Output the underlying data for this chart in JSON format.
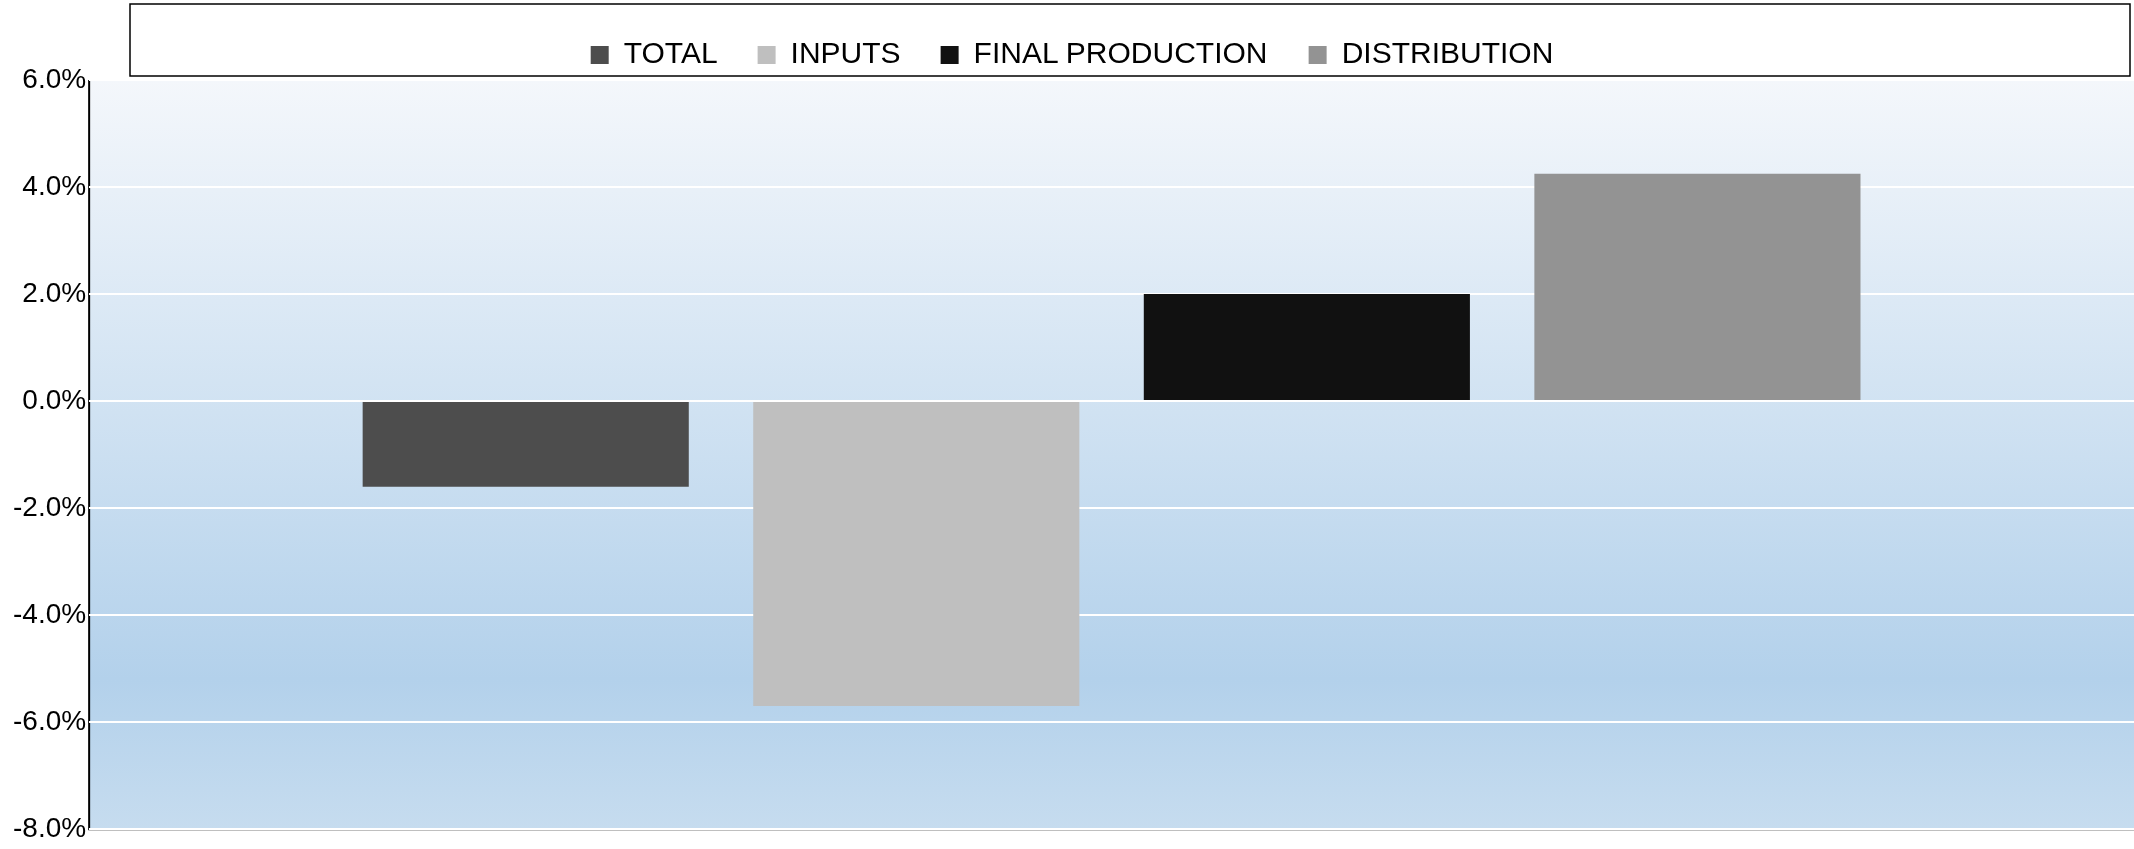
{
  "chart_data": {
    "type": "bar",
    "categories": [
      null
    ],
    "series": [
      {
        "name": "TOTAL",
        "color": "#4d4d4d",
        "values": [
          -1.6
        ]
      },
      {
        "name": "INPUTS",
        "color": "#bfbfbf",
        "values": [
          -5.7
        ]
      },
      {
        "name": "FINAL PRODUCTION",
        "color": "#111111",
        "values": [
          2.0
        ]
      },
      {
        "name": "DISTRIBUTION",
        "color": "#939393",
        "values": [
          4.25
        ]
      }
    ],
    "ylim": [
      -8,
      6
    ],
    "yticks": [
      {
        "value": -8,
        "label": "-8.0%"
      },
      {
        "value": -6,
        "label": "-6.0%"
      },
      {
        "value": -4,
        "label": "-4.0%"
      },
      {
        "value": -2,
        "label": "-2.0%"
      },
      {
        "value": 0,
        "label": "0.0%"
      },
      {
        "value": 2,
        "label": "2.0%"
      },
      {
        "value": 4,
        "label": "4.0%"
      },
      {
        "value": 6,
        "label": "6.0%"
      }
    ],
    "grid": "y",
    "legend": "top",
    "tick_labels": "y"
  }
}
